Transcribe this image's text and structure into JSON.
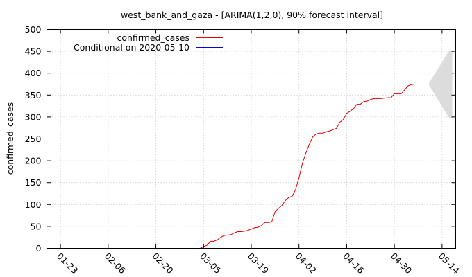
{
  "chart_data": {
    "type": "line",
    "title": "west_bank_and_gaza -  [ARIMA(1,2,0), 90% forecast interval]",
    "xlabel": "",
    "ylabel": "confirmed_cases",
    "x_axis": "date",
    "xlim": [
      "2020-01-19",
      "2020-05-18"
    ],
    "ylim": [
      0,
      500
    ],
    "y_ticks": [
      0,
      50,
      100,
      150,
      200,
      250,
      300,
      350,
      400,
      450,
      500
    ],
    "x_ticks": [
      {
        "date": "2020-01-23",
        "label": "01-23"
      },
      {
        "date": "2020-02-06",
        "label": "02-06"
      },
      {
        "date": "2020-02-20",
        "label": "02-20"
      },
      {
        "date": "2020-03-05",
        "label": "03-05"
      },
      {
        "date": "2020-03-19",
        "label": "03-19"
      },
      {
        "date": "2020-04-02",
        "label": "04-02"
      },
      {
        "date": "2020-04-16",
        "label": "04-16"
      },
      {
        "date": "2020-04-30",
        "label": "04-30"
      },
      {
        "date": "2020-05-14",
        "label": "05-14"
      }
    ],
    "grid": true,
    "legend": "top-left",
    "series": [
      {
        "name": "confirmed_cases",
        "color": "#e00000",
        "points": [
          [
            "2020-03-04",
            0
          ],
          [
            "2020-03-05",
            4
          ],
          [
            "2020-03-06",
            7
          ],
          [
            "2020-03-07",
            16
          ],
          [
            "2020-03-08",
            16
          ],
          [
            "2020-03-09",
            19
          ],
          [
            "2020-03-10",
            25
          ],
          [
            "2020-03-11",
            29
          ],
          [
            "2020-03-12",
            30
          ],
          [
            "2020-03-13",
            31
          ],
          [
            "2020-03-14",
            35
          ],
          [
            "2020-03-15",
            38
          ],
          [
            "2020-03-16",
            38
          ],
          [
            "2020-03-17",
            39
          ],
          [
            "2020-03-18",
            41
          ],
          [
            "2020-03-19",
            44
          ],
          [
            "2020-03-20",
            47
          ],
          [
            "2020-03-21",
            48
          ],
          [
            "2020-03-22",
            52
          ],
          [
            "2020-03-23",
            59
          ],
          [
            "2020-03-24",
            59
          ],
          [
            "2020-03-25",
            60
          ],
          [
            "2020-03-26",
            84
          ],
          [
            "2020-03-27",
            91
          ],
          [
            "2020-03-28",
            98
          ],
          [
            "2020-03-29",
            109
          ],
          [
            "2020-03-30",
            116
          ],
          [
            "2020-03-31",
            119
          ],
          [
            "2020-04-01",
            134
          ],
          [
            "2020-04-02",
            161
          ],
          [
            "2020-04-03",
            194
          ],
          [
            "2020-04-04",
            217
          ],
          [
            "2020-04-05",
            237
          ],
          [
            "2020-04-06",
            254
          ],
          [
            "2020-04-07",
            261
          ],
          [
            "2020-04-08",
            263
          ],
          [
            "2020-04-09",
            263
          ],
          [
            "2020-04-10",
            266
          ],
          [
            "2020-04-11",
            268
          ],
          [
            "2020-04-12",
            271
          ],
          [
            "2020-04-13",
            274
          ],
          [
            "2020-04-14",
            288
          ],
          [
            "2020-04-15",
            294
          ],
          [
            "2020-04-16",
            308
          ],
          [
            "2020-04-17",
            313
          ],
          [
            "2020-04-18",
            319
          ],
          [
            "2020-04-19",
            329
          ],
          [
            "2020-04-20",
            329
          ],
          [
            "2020-04-21",
            335
          ],
          [
            "2020-04-22",
            336
          ],
          [
            "2020-04-23",
            340
          ],
          [
            "2020-04-24",
            342
          ],
          [
            "2020-04-25",
            342
          ],
          [
            "2020-04-26",
            342
          ],
          [
            "2020-04-27",
            343
          ],
          [
            "2020-04-28",
            344
          ],
          [
            "2020-04-29",
            344
          ],
          [
            "2020-04-30",
            353
          ],
          [
            "2020-05-01",
            353
          ],
          [
            "2020-05-02",
            353
          ],
          [
            "2020-05-03",
            362
          ],
          [
            "2020-05-04",
            371
          ],
          [
            "2020-05-05",
            374
          ],
          [
            "2020-05-06",
            375
          ],
          [
            "2020-05-07",
            375
          ],
          [
            "2020-05-08",
            375
          ],
          [
            "2020-05-09",
            375
          ],
          [
            "2020-05-10",
            375
          ]
        ]
      },
      {
        "name": "Conditional on 2020-05-10",
        "color": "#0000e0",
        "points": [
          [
            "2020-05-10",
            375
          ],
          [
            "2020-05-17",
            375
          ]
        ]
      }
    ],
    "forecast_band": {
      "color": "#dcdcdc",
      "points": [
        [
          "2020-05-10",
          375,
          375
        ],
        [
          "2020-05-11",
          362,
          388
        ],
        [
          "2020-05-12",
          349,
          400
        ],
        [
          "2020-05-13",
          337,
          413
        ],
        [
          "2020-05-14",
          324,
          425
        ],
        [
          "2020-05-15",
          312,
          438
        ],
        [
          "2020-05-16",
          299,
          450
        ],
        [
          "2020-05-17",
          297,
          453
        ]
      ]
    }
  }
}
